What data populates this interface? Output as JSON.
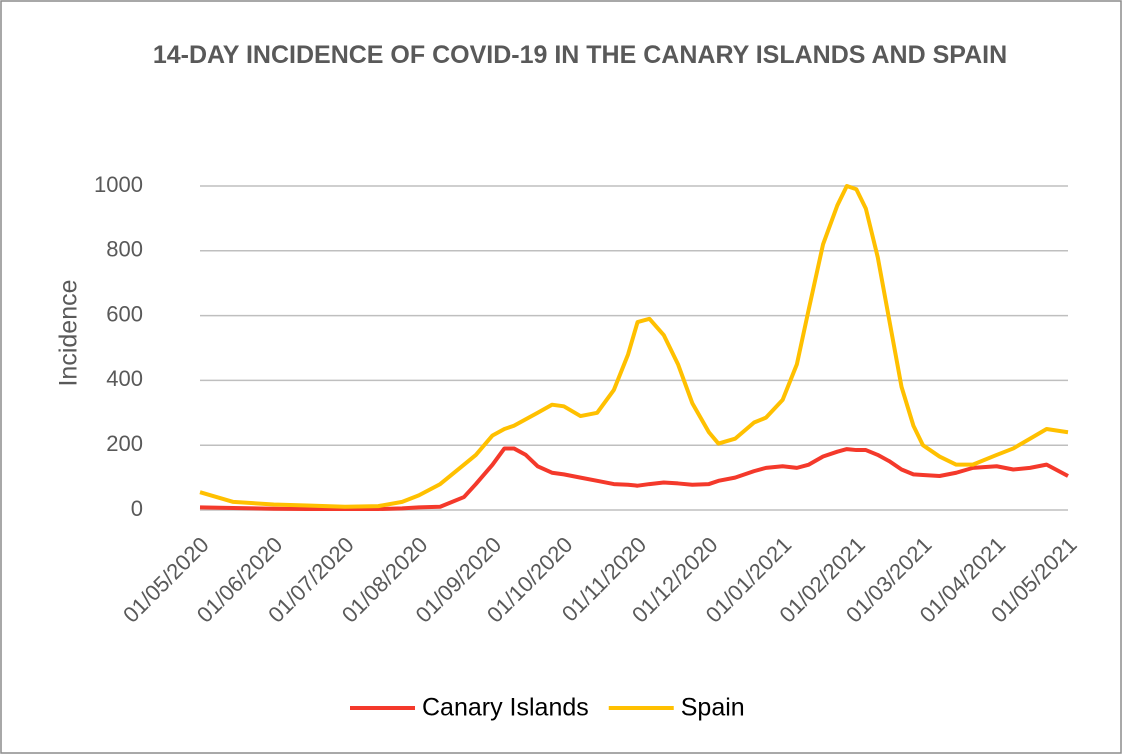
{
  "chart_data": {
    "type": "line",
    "title": "14-DAY INCIDENCE OF COVID-19 IN THE CANARY ISLANDS AND SPAIN",
    "y_label": "Incidence",
    "x": [
      "01/05/2020",
      "15/05/2020",
      "01/06/2020",
      "15/06/2020",
      "01/07/2020",
      "15/07/2020",
      "25/07/2020",
      "01/08/2020",
      "10/08/2020",
      "20/08/2020",
      "25/08/2020",
      "01/09/2020",
      "06/09/2020",
      "10/09/2020",
      "15/09/2020",
      "20/09/2020",
      "26/09/2020",
      "01/10/2020",
      "08/10/2020",
      "15/10/2020",
      "22/10/2020",
      "28/10/2020",
      "01/11/2020",
      "06/11/2020",
      "12/11/2020",
      "18/11/2020",
      "24/11/2020",
      "01/12/2020",
      "05/12/2020",
      "12/12/2020",
      "20/12/2020",
      "25/12/2020",
      "01/01/2021",
      "07/01/2021",
      "12/01/2021",
      "18/01/2021",
      "24/01/2021",
      "28/01/2021",
      "01/02/2021",
      "05/02/2021",
      "10/02/2021",
      "15/02/2021",
      "20/02/2021",
      "25/02/2021",
      "01/03/2021",
      "08/03/2021",
      "15/03/2021",
      "22/03/2021",
      "01/04/2021",
      "08/04/2021",
      "15/04/2021",
      "22/04/2021",
      "01/05/2021"
    ],
    "series": [
      {
        "name": "Canary Islands",
        "color": "#f4392b",
        "values": [
          8,
          6,
          4,
          3,
          3,
          3,
          5,
          8,
          10,
          40,
          80,
          140,
          190,
          190,
          170,
          135,
          115,
          110,
          100,
          90,
          80,
          78,
          75,
          80,
          85,
          82,
          78,
          80,
          90,
          100,
          120,
          130,
          135,
          130,
          140,
          165,
          180,
          188,
          185,
          185,
          170,
          150,
          125,
          110,
          108,
          105,
          115,
          130,
          135,
          125,
          130,
          140,
          105
        ]
      },
      {
        "name": "Spain",
        "color": "#ffc000",
        "values": [
          55,
          25,
          17,
          14,
          10,
          12,
          25,
          45,
          80,
          140,
          170,
          230,
          250,
          260,
          280,
          300,
          325,
          320,
          290,
          300,
          370,
          480,
          580,
          590,
          540,
          450,
          330,
          240,
          205,
          220,
          270,
          285,
          340,
          450,
          620,
          820,
          940,
          1000,
          990,
          930,
          780,
          580,
          380,
          260,
          200,
          165,
          140,
          140,
          170,
          190,
          220,
          250,
          240
        ]
      }
    ],
    "xlim": [
      "01/05/2020",
      "01/05/2021"
    ],
    "xticks": [
      "01/05/2020",
      "01/06/2020",
      "01/07/2020",
      "01/08/2020",
      "01/09/2020",
      "01/10/2020",
      "01/11/2020",
      "01/12/2020",
      "01/01/2021",
      "01/02/2021",
      "01/03/2021",
      "01/04/2021",
      "01/05/2021"
    ],
    "ylim": [
      0,
      1000
    ],
    "yticks": [
      0,
      200,
      400,
      600,
      800,
      1000
    ],
    "grid": true,
    "legend": "bottom"
  }
}
